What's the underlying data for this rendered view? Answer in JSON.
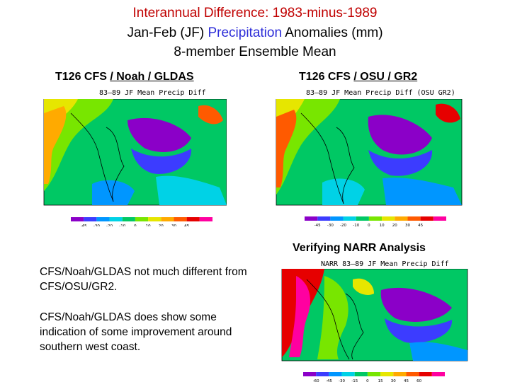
{
  "title": {
    "line1": "Interannual Difference: 1983-minus-1989",
    "line2_pre": "Jan-Feb (JF) ",
    "line2_highlight": "Precipitation",
    "line2_post": " Anomalies (mm)",
    "line3": "8-member Ensemble Mean"
  },
  "panels": {
    "left": {
      "title_pre": "T126 CFS ",
      "title_ul": "/ Noah / GLDAS",
      "map_title": "83–89 JF Mean Precip Diff"
    },
    "right": {
      "title_pre": "T126 CFS ",
      "title_ul": "/ OSU / GR2",
      "map_title": "83–89 JF Mean Precip Diff (OSU GR2)"
    },
    "narr": {
      "title": "Verifying NARR Analysis",
      "map_title": "NARR 83–89 JF Mean Precip Diff"
    }
  },
  "colorbar_labels_left": [
    "-45",
    "-30",
    "-20",
    "-10",
    "0",
    "10",
    "20",
    "30",
    "45"
  ],
  "colorbar_labels_right": [
    "-45",
    "-30",
    "-20",
    "-10",
    "0",
    "10",
    "20",
    "30",
    "45"
  ],
  "colorbar_labels_narr": [
    "-60",
    "-45",
    "-30",
    "-15",
    "0",
    "15",
    "30",
    "45",
    "60"
  ],
  "notes": {
    "note1": "CFS/Noah/GLDAS not much different from CFS/OSU/GR2.",
    "note2": "CFS/Noah/GLDAS does show some indication of some improvement around southern west coast."
  },
  "colors": {
    "title_red": "#c00000",
    "highlight_blue": "#2b2bd8",
    "palette": [
      "#8b00c8",
      "#3c3cff",
      "#0096ff",
      "#00d2e6",
      "#00c864",
      "#78e600",
      "#e6e600",
      "#ffaa00",
      "#ff5a00",
      "#e60000",
      "#ff00a0"
    ]
  }
}
